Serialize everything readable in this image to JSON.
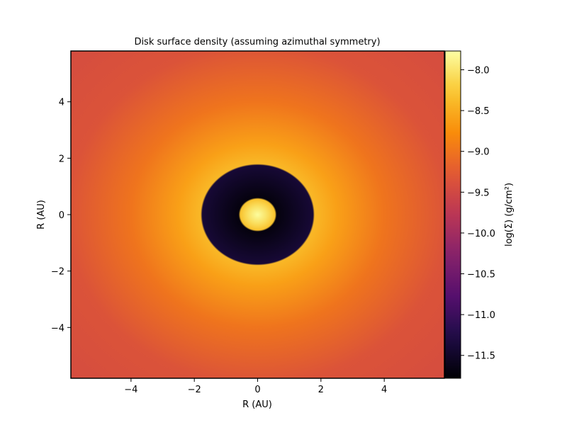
{
  "chart_data": {
    "type": "heatmap",
    "title": "Disk surface density (assuming azimuthal symmetry)",
    "xlabel": "R (AU)",
    "ylabel": "R (AU)",
    "xlim": [
      -5.9,
      5.9
    ],
    "ylim": [
      -5.8,
      5.8
    ],
    "x_ticks": [
      -4,
      -2,
      0,
      2,
      4
    ],
    "y_ticks": [
      -4,
      -2,
      0,
      2,
      4
    ],
    "x_tick_labels": [
      "−4",
      "−2",
      "0",
      "2",
      "4"
    ],
    "y_tick_labels": [
      "−4",
      "−2",
      "0",
      "2",
      "4"
    ],
    "colorbar": {
      "label": "log(Σ) (g/cm²)",
      "colormap": "inferno",
      "range": [
        -11.78,
        -7.77
      ],
      "ticks": [
        -8.0,
        -8.5,
        -9.0,
        -9.5,
        -10.0,
        -10.5,
        -11.0,
        -11.5
      ],
      "tick_labels": [
        "−8.0",
        "−8.5",
        "−9.0",
        "−9.5",
        "−10.0",
        "−10.5",
        "−11.0",
        "−11.5"
      ]
    },
    "radial_profile": [
      {
        "r": 0.0,
        "log_sigma": -7.8
      },
      {
        "r": 0.3,
        "log_sigma": -8.05
      },
      {
        "r": 0.55,
        "log_sigma": -8.3
      },
      {
        "r": 0.6,
        "log_sigma": -11.7
      },
      {
        "r": 1.75,
        "log_sigma": -11.4
      },
      {
        "r": 1.8,
        "log_sigma": -8.4
      },
      {
        "r": 2.5,
        "log_sigma": -8.6
      },
      {
        "r": 4.0,
        "log_sigma": -9.0
      },
      {
        "r": 6.0,
        "log_sigma": -9.35
      },
      {
        "r": 8.5,
        "log_sigma": -9.45
      }
    ],
    "grid": false
  }
}
